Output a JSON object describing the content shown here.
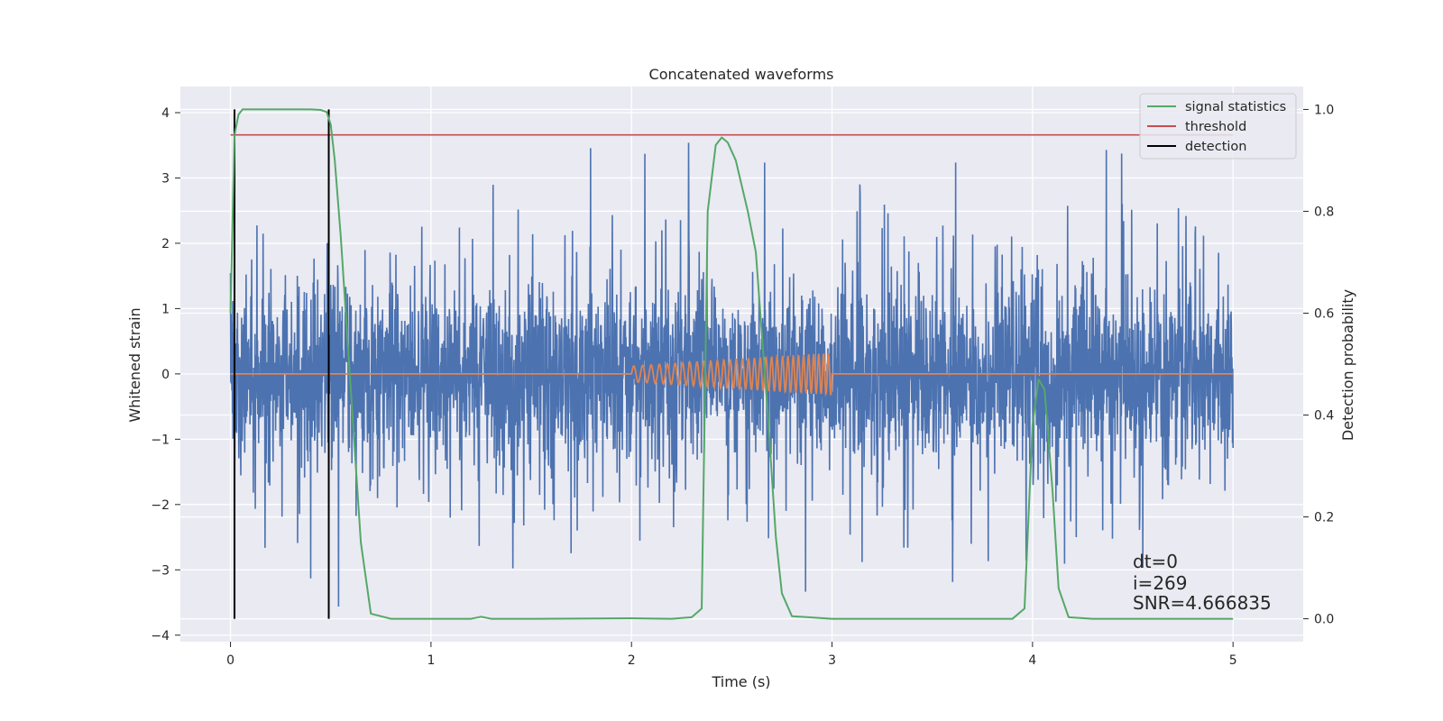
{
  "chart_data": {
    "type": "line",
    "title": "Concatenated waveforms",
    "xlabel": "Time (s)",
    "ylabel": "Whitened strain",
    "y2label": "Detection probability",
    "xlim": [
      -0.25,
      5.35
    ],
    "ylim": [
      -4.1,
      4.4
    ],
    "y2lim": [
      -0.045,
      1.045
    ],
    "xticks": [
      "0",
      "1",
      "2",
      "3",
      "4",
      "5"
    ],
    "yticks": [
      "−4",
      "−3",
      "−2",
      "−1",
      "0",
      "1",
      "2",
      "3",
      "4"
    ],
    "y2ticks": [
      "0.0",
      "0.2",
      "0.4",
      "0.6",
      "0.8",
      "1.0"
    ],
    "grid": true,
    "legend_position": "top-right",
    "colors": {
      "noise": "#4c72b0",
      "injection": "#dd8452",
      "signal_statistics": "#55a868",
      "threshold": "#c44e52",
      "detection": "#000000",
      "plot_background": "#eaeaf2",
      "grid": "#ffffff"
    },
    "series": [
      {
        "name": "",
        "axis": "left",
        "description": "whitened noise strain sampled across 0 to 5 s, amplitude mostly within ±1.5 with spikes up to about ±3.7",
        "x_range": [
          0,
          5
        ],
        "amplitude_typical": 1.5,
        "amplitude_peak": 3.7
      },
      {
        "name": "",
        "axis": "left",
        "description": "injected chirp waveform, zero outside 2 to 3 s, growing oscillation inside",
        "x_range": [
          0,
          5
        ],
        "chirp_start": 2.0,
        "chirp_end": 3.0,
        "amplitude_start": 0.12,
        "amplitude_end": 0.33
      },
      {
        "name": "signal statistics",
        "axis": "right",
        "x": [
          0.0,
          0.02,
          0.04,
          0.06,
          0.1,
          0.2,
          0.3,
          0.4,
          0.45,
          0.48,
          0.5,
          0.52,
          0.55,
          0.6,
          0.65,
          0.7,
          0.8,
          1.0,
          1.2,
          1.25,
          1.3,
          1.5,
          2.0,
          2.2,
          2.3,
          2.35,
          2.38,
          2.42,
          2.45,
          2.48,
          2.52,
          2.58,
          2.62,
          2.68,
          2.72,
          2.75,
          2.8,
          3.0,
          3.5,
          3.8,
          3.9,
          3.96,
          4.0,
          4.03,
          4.06,
          4.1,
          4.13,
          4.18,
          4.3,
          5.0
        ],
        "y": [
          0.6,
          0.95,
          0.99,
          1.0,
          1.0,
          1.0,
          1.0,
          1.0,
          0.999,
          0.995,
          0.97,
          0.9,
          0.75,
          0.45,
          0.15,
          0.01,
          0.0,
          0.0,
          0.0,
          0.004,
          0.0,
          0.0,
          0.001,
          0.0,
          0.003,
          0.02,
          0.8,
          0.93,
          0.945,
          0.935,
          0.9,
          0.8,
          0.72,
          0.4,
          0.16,
          0.05,
          0.005,
          0.0,
          0.0,
          0.0,
          0.0,
          0.02,
          0.38,
          0.47,
          0.45,
          0.25,
          0.06,
          0.003,
          0.0,
          0.0
        ]
      },
      {
        "name": "threshold",
        "axis": "right",
        "x": [
          0,
          5
        ],
        "y": [
          0.95,
          0.95
        ]
      },
      {
        "name": "detection",
        "axis": "right",
        "x_positions": [
          0.02,
          0.49
        ],
        "y_range": [
          0,
          1
        ]
      }
    ],
    "annotations": [
      "dt=0",
      "i=269",
      "SNR=4.666835"
    ]
  }
}
